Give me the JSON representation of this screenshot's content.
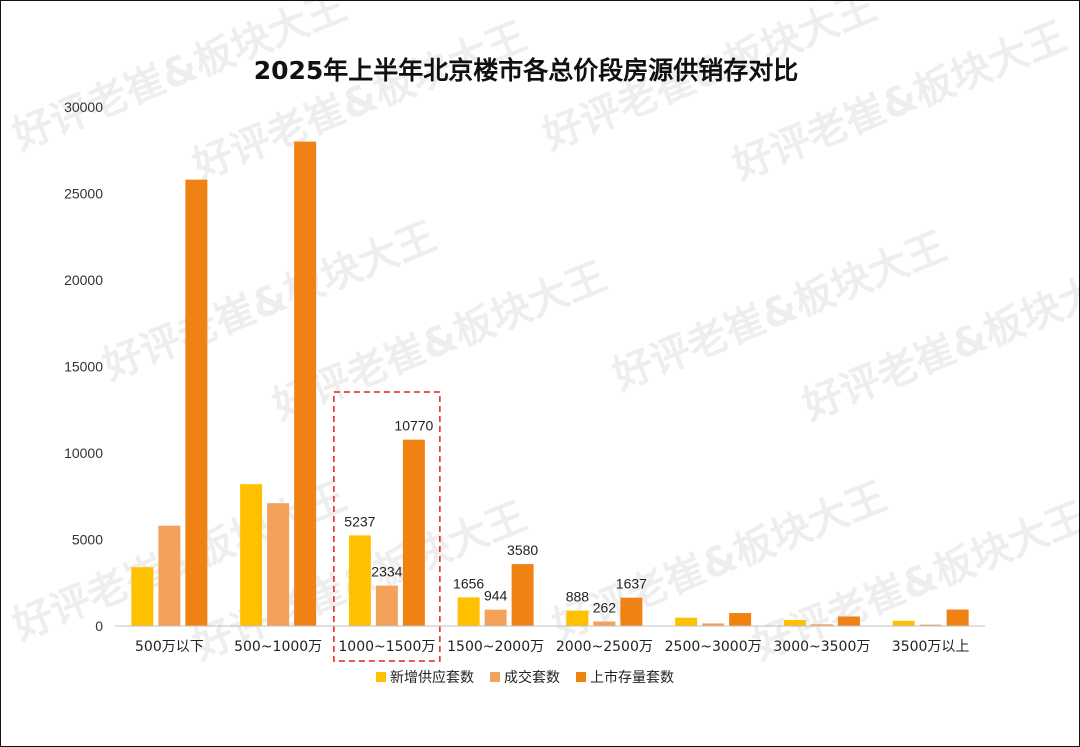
{
  "chart_data": {
    "type": "bar",
    "title": "2025年上半年北京楼市各总价段房源供销存对比",
    "categories": [
      "500万以下",
      "500~1000万",
      "1000~1500万",
      "1500~2000万",
      "2000~2500万",
      "2500~3000万",
      "3000~3500万",
      "3500万以上"
    ],
    "series": [
      {
        "name": "新增供应套数",
        "color": "#FFC000",
        "values": [
          3400,
          8200,
          5237,
          1656,
          888,
          480,
          350,
          300
        ]
      },
      {
        "name": "成交套数",
        "color": "#F4A25B",
        "values": [
          5800,
          7100,
          2334,
          944,
          262,
          150,
          100,
          80
        ]
      },
      {
        "name": "上市存量套数",
        "color": "#F08214",
        "values": [
          25800,
          28000,
          10770,
          3580,
          1637,
          750,
          550,
          950
        ]
      }
    ],
    "data_labels": [
      {
        "category": 2,
        "series": 0,
        "text": "5237"
      },
      {
        "category": 2,
        "series": 1,
        "text": "2334"
      },
      {
        "category": 2,
        "series": 2,
        "text": "10770"
      },
      {
        "category": 3,
        "series": 0,
        "text": "1656"
      },
      {
        "category": 3,
        "series": 1,
        "text": "944"
      },
      {
        "category": 3,
        "series": 2,
        "text": "3580"
      },
      {
        "category": 4,
        "series": 0,
        "text": "888"
      },
      {
        "category": 4,
        "series": 1,
        "text": "262"
      },
      {
        "category": 4,
        "series": 2,
        "text": "1637"
      }
    ],
    "highlighted_category": 2,
    "ylim": [
      0,
      30000
    ],
    "yticks": [
      0,
      5000,
      10000,
      15000,
      20000,
      25000,
      30000
    ],
    "grid": false,
    "legend": "bottom",
    "watermark": "好评老崔&板块大王"
  }
}
